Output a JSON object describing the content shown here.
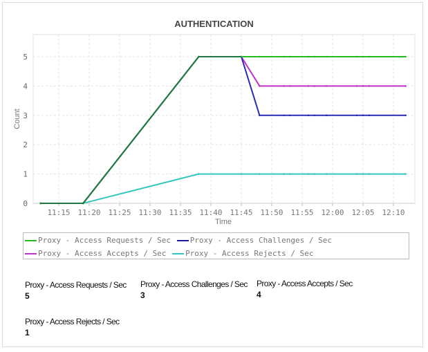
{
  "chart_data": {
    "type": "line",
    "title": "AUTHENTICATION",
    "xlabel": "Time",
    "ylabel": "Count",
    "ylim": [
      0,
      5
    ],
    "yticks": [
      "0",
      "1",
      "2",
      "3",
      "4",
      "5"
    ],
    "xticks": [
      "11:15",
      "11:20",
      "11:25",
      "11:30",
      "11:35",
      "11:40",
      "11:45",
      "11:50",
      "11:55",
      "12:00",
      "12:05",
      "12:10"
    ],
    "grid": true,
    "legend_placement": "bottom",
    "x": [
      "11:12",
      "11:19",
      "11:38",
      "11:45",
      "11:48",
      "11:52",
      "11:53",
      "11:56",
      "11:57",
      "11:59",
      "12:04",
      "12:05",
      "12:06",
      "12:12"
    ],
    "series": [
      {
        "name": "Proxy - Access Rejects / Sec",
        "color": "#33c6c0",
        "values": [
          0,
          0,
          1,
          1,
          1,
          1,
          1,
          1,
          1,
          1,
          1,
          1,
          1,
          1
        ]
      },
      {
        "name": "Proxy - Access Accepts / Sec",
        "color": "#c030c8",
        "values": [
          0,
          0,
          5,
          5,
          4,
          4,
          4,
          4,
          4,
          4,
          4,
          4,
          4,
          4
        ]
      },
      {
        "name": "Proxy - Access Challenges / Sec",
        "color": "#2a2ab8",
        "values": [
          0,
          0,
          5,
          5,
          3,
          3,
          3,
          3,
          3,
          3,
          3,
          3,
          3,
          3
        ]
      },
      {
        "name": "Proxy - Access Requests / Sec",
        "color": "#22bb22",
        "values": [
          0,
          0,
          5,
          5,
          5,
          5,
          5,
          5,
          5,
          5,
          5,
          5,
          5,
          5
        ]
      }
    ]
  },
  "legend": [
    {
      "label": "Proxy - Access Requests / Sec",
      "color": "#22bb22"
    },
    {
      "label": "Proxy - Access Challenges / Sec",
      "color": "#1a1a9a"
    },
    {
      "label": "Proxy - Access Accepts / Sec",
      "color": "#c030c8"
    },
    {
      "label": "Proxy - Access Rejects / Sec",
      "color": "#33c6c0"
    }
  ],
  "stats": [
    {
      "label": "Proxy - Access Requests / Sec",
      "value": "5"
    },
    {
      "label": "Proxy - Access Challenges / Sec",
      "value": "3"
    },
    {
      "label": "Proxy - Access Accepts / Sec",
      "value": "4"
    },
    {
      "label": "Proxy - Access Rejects / Sec",
      "value": "1"
    }
  ]
}
